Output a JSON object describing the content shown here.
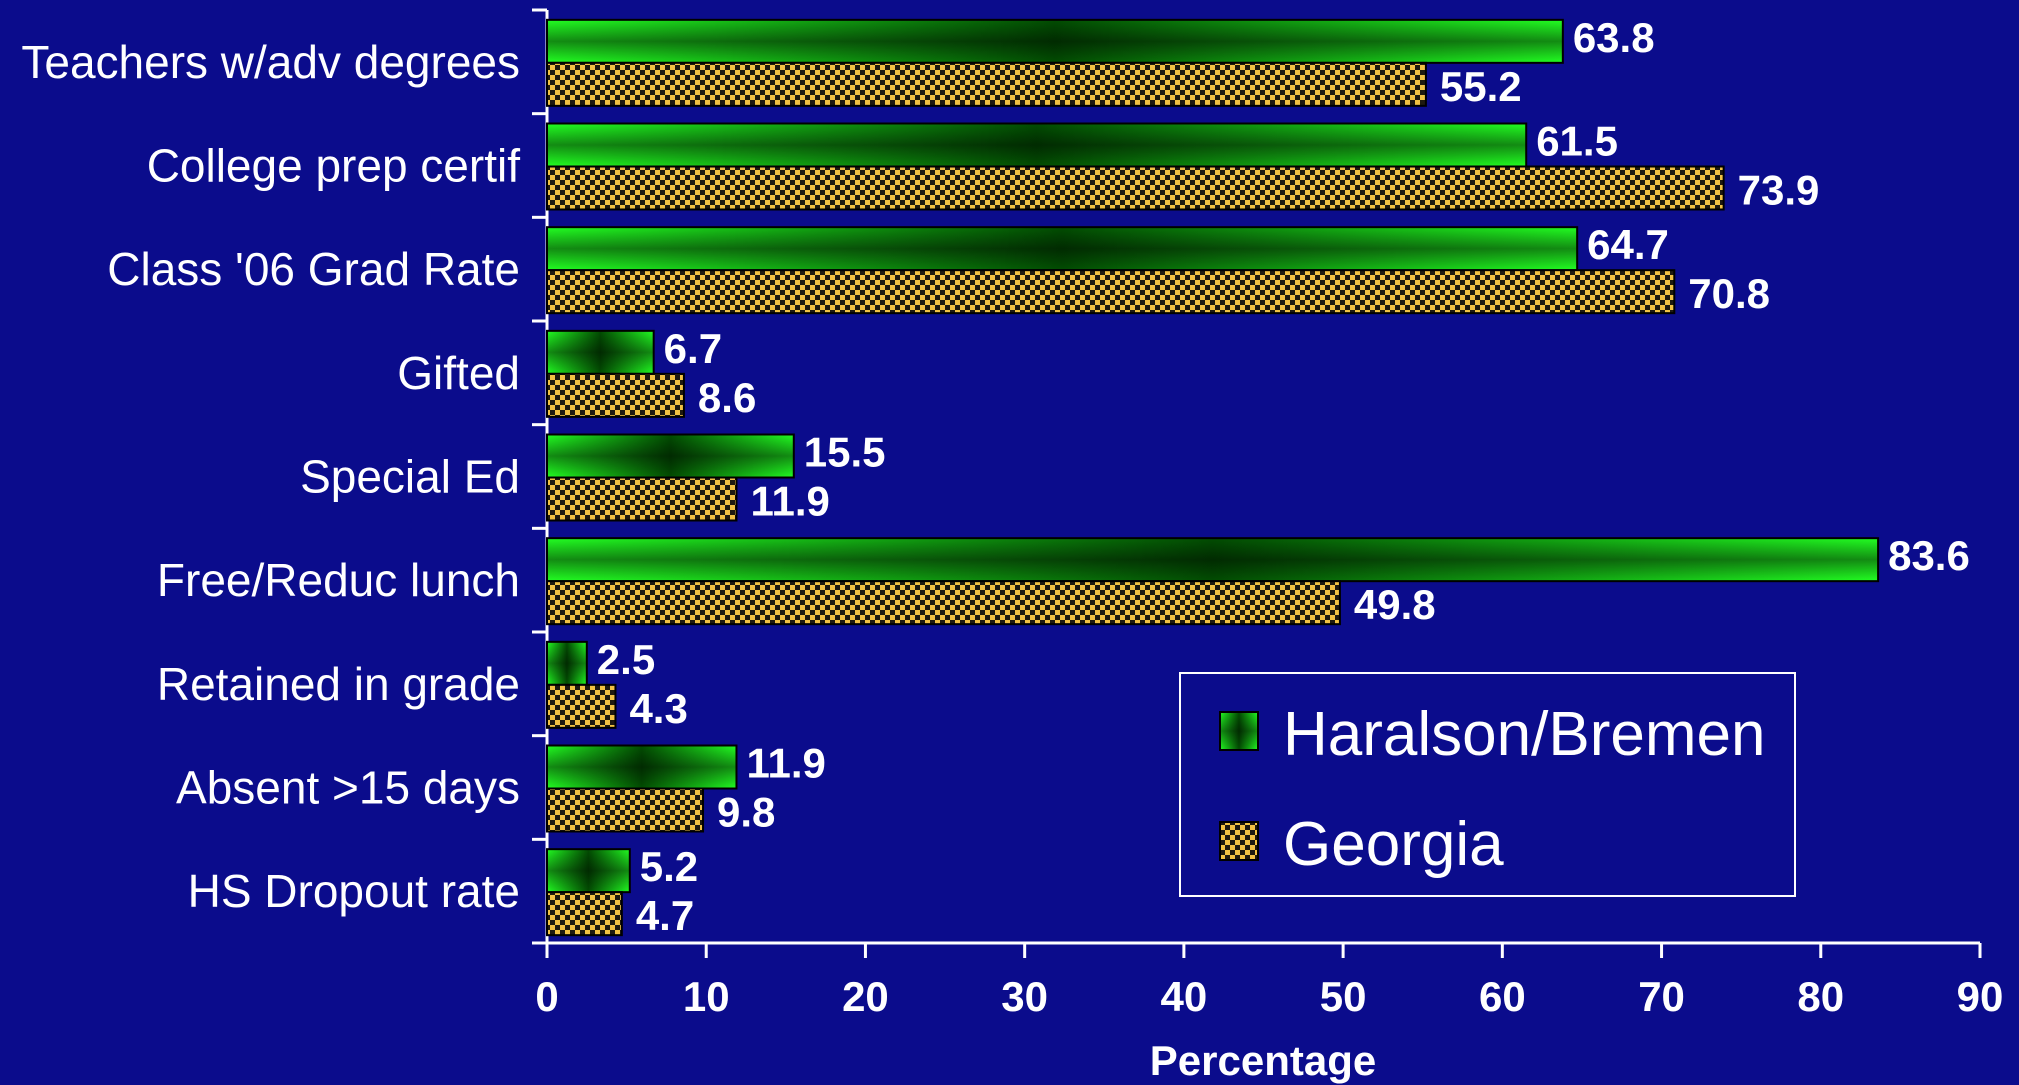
{
  "chart_data": {
    "type": "bar",
    "orientation": "horizontal",
    "categories": [
      "Teachers w/adv degrees",
      "College prep certif",
      "Class '06 Grad Rate",
      "Gifted",
      "Special Ed",
      "Free/Reduc lunch",
      "Retained in grade",
      "Absent >15 days",
      "HS Dropout rate"
    ],
    "series": [
      {
        "name": "Haralson/Bremen",
        "values": [
          63.8,
          61.5,
          64.7,
          6.7,
          15.5,
          83.6,
          2.5,
          11.9,
          5.2
        ],
        "color": "#1aff1a"
      },
      {
        "name": "Georgia",
        "values": [
          55.2,
          73.9,
          70.8,
          8.6,
          11.9,
          49.8,
          4.3,
          9.8,
          4.7
        ],
        "color": "#f5c242"
      }
    ],
    "value_labels": {
      "Haralson/Bremen": [
        "63.8",
        "61.5",
        "64.7",
        "6.7",
        "15.5",
        "83.6",
        "2.5",
        "11.9",
        "5.2"
      ],
      "Georgia": [
        "55.2",
        "73.9",
        "70.8",
        "8.6",
        "11.9",
        "49.8",
        "4.3",
        "9.8",
        "4.7"
      ]
    },
    "xlabel": "Percentage",
    "ylabel": "",
    "xlim": [
      0,
      90
    ],
    "xticks": [
      0,
      10,
      20,
      30,
      40,
      50,
      60,
      70,
      80,
      90
    ],
    "xtick_labels": [
      "0",
      "10",
      "20",
      "30",
      "40",
      "50",
      "60",
      "70",
      "80",
      "90"
    ],
    "grid": false,
    "legend_position": "bottom-right",
    "background_color": "#0b0c8c"
  }
}
